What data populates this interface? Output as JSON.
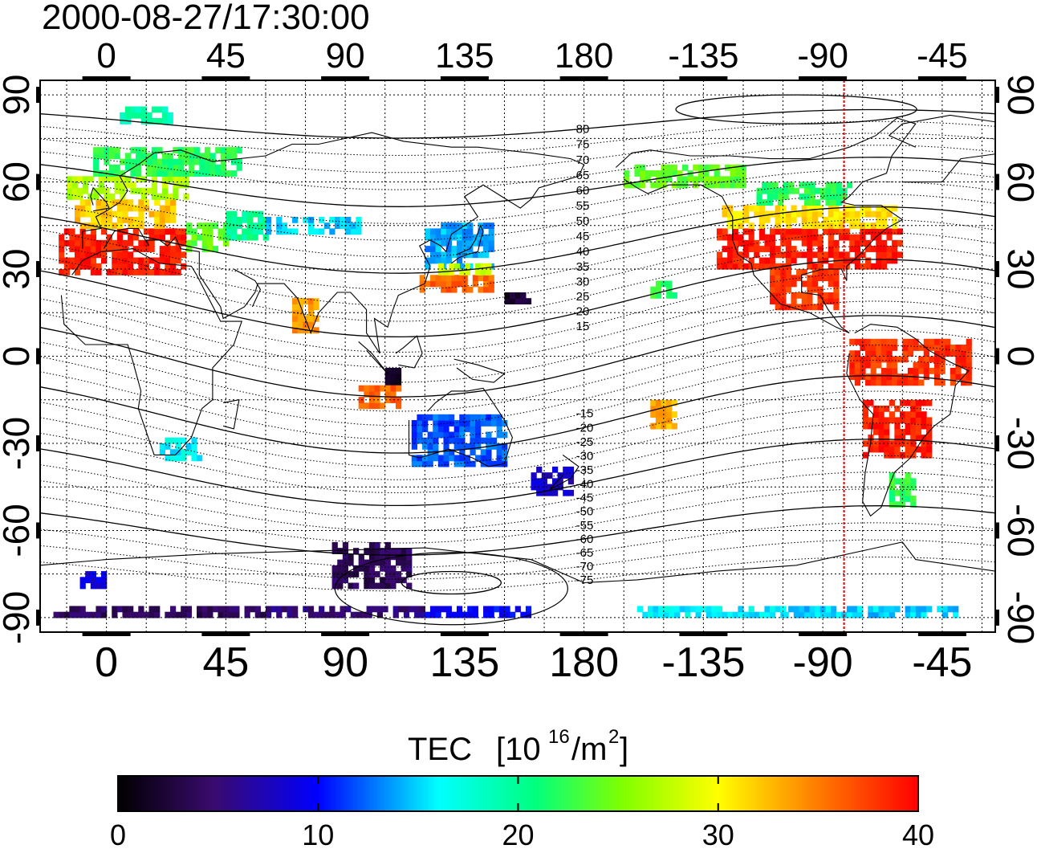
{
  "title": "2000-08-27/17:30:00",
  "map": {
    "lon_range": [
      -25,
      335
    ],
    "lat_range": [
      -95,
      95
    ],
    "lon_ticks": [
      0,
      45,
      90,
      135,
      180,
      225,
      270,
      315
    ],
    "lon_tick_labels": [
      "0",
      "45",
      "90",
      "135",
      "180",
      "-135",
      "-90",
      "-45"
    ],
    "lat_ticks": [
      90,
      60,
      30,
      0,
      -30,
      -60,
      -90
    ],
    "lat_tick_labels": [
      "90",
      "60",
      "30",
      "0",
      "-30",
      "-60",
      "-90"
    ],
    "grid": "dotted, every 15 degrees",
    "meridian_marker": {
      "lon": 278,
      "color": "#e00000"
    },
    "contour_labels": [
      "80",
      "75",
      "70",
      "65",
      "60",
      "55",
      "50",
      "45",
      "40",
      "35",
      "30",
      "25",
      "20",
      "15",
      "-15",
      "-20",
      "-25",
      "-30",
      "-35",
      "-40",
      "-45",
      "-50",
      "-55",
      "-60",
      "-65",
      "-70",
      "-75"
    ],
    "contour_label_lon": 180
  },
  "tec_regions": [
    {
      "lon": [
        -18,
        30
      ],
      "lat": [
        28,
        44
      ],
      "value": 39
    },
    {
      "lon": [
        -12,
        25
      ],
      "lat": [
        44,
        54
      ],
      "value": 32
    },
    {
      "lon": [
        -15,
        30
      ],
      "lat": [
        54,
        62
      ],
      "value": 27
    },
    {
      "lon": [
        -5,
        50
      ],
      "lat": [
        62,
        72
      ],
      "value": 22
    },
    {
      "lon": [
        5,
        25
      ],
      "lat": [
        80,
        86
      ],
      "value": 19
    },
    {
      "lon": [
        30,
        45
      ],
      "lat": [
        36,
        46
      ],
      "value": 24
    },
    {
      "lon": [
        45,
        60
      ],
      "lat": [
        40,
        50
      ],
      "value": 20
    },
    {
      "lon": [
        60,
        95
      ],
      "lat": [
        42,
        48
      ],
      "value": 15
    },
    {
      "lon": [
        120,
        145
      ],
      "lat": [
        30,
        45
      ],
      "value": 14
    },
    {
      "lon": [
        118,
        145
      ],
      "lat": [
        22,
        28
      ],
      "value": 36
    },
    {
      "lon": [
        125,
        145
      ],
      "lat": [
        28,
        32
      ],
      "value": 28
    },
    {
      "lon": [
        230,
        300
      ],
      "lat": [
        30,
        44
      ],
      "value": 39
    },
    {
      "lon": [
        232,
        298
      ],
      "lat": [
        44,
        52
      ],
      "value": 31
    },
    {
      "lon": [
        195,
        240
      ],
      "lat": [
        58,
        65
      ],
      "value": 24
    },
    {
      "lon": [
        245,
        280
      ],
      "lat": [
        52,
        60
      ],
      "value": 22
    },
    {
      "lon": [
        250,
        275
      ],
      "lat": [
        16,
        30
      ],
      "value": 38
    },
    {
      "lon": [
        280,
        325
      ],
      "lat": [
        -10,
        5
      ],
      "value": 38
    },
    {
      "lon": [
        285,
        310
      ],
      "lat": [
        -35,
        -15
      ],
      "value": 39
    },
    {
      "lon": [
        295,
        305
      ],
      "lat": [
        -52,
        -40
      ],
      "value": 22
    },
    {
      "lon": [
        20,
        35
      ],
      "lat": [
        -36,
        -28
      ],
      "value": 16
    },
    {
      "lon": [
        160,
        176
      ],
      "lat": [
        -48,
        -38
      ],
      "value": 8
    },
    {
      "lon": [
        115,
        150
      ],
      "lat": [
        -38,
        -20
      ],
      "value": 12
    },
    {
      "lon": [
        85,
        115
      ],
      "lat": [
        -80,
        -65
      ],
      "value": 4
    },
    {
      "lon": [
        -10,
        0
      ],
      "lat": [
        -80,
        -75
      ],
      "value": 9
    },
    {
      "lon": [
        -20,
        60
      ],
      "lat": [
        -90,
        -87
      ],
      "value": 4
    },
    {
      "lon": [
        60,
        120
      ],
      "lat": [
        -90,
        -87
      ],
      "value": 5
    },
    {
      "lon": [
        120,
        160
      ],
      "lat": [
        -90,
        -87
      ],
      "value": 10
    },
    {
      "lon": [
        200,
        255
      ],
      "lat": [
        -90,
        -87
      ],
      "value": 16
    },
    {
      "lon": [
        255,
        320
      ],
      "lat": [
        -90,
        -87
      ],
      "value": 15
    },
    {
      "lon": [
        205,
        215
      ],
      "lat": [
        20,
        26
      ],
      "value": 22
    },
    {
      "lon": [
        150,
        160
      ],
      "lat": [
        18,
        22
      ],
      "value": 2
    },
    {
      "lon": [
        105,
        110
      ],
      "lat": [
        -12,
        -4
      ],
      "value": 2
    },
    {
      "lon": [
        95,
        110
      ],
      "lat": [
        -18,
        -10
      ],
      "value": 36
    },
    {
      "lon": [
        70,
        80
      ],
      "lat": [
        8,
        20
      ],
      "value": 34
    },
    {
      "lon": [
        205,
        215
      ],
      "lat": [
        -25,
        -15
      ],
      "value": 33
    }
  ],
  "colorbar": {
    "label": "TEC",
    "units_prefix": "[10",
    "units_exp": "16",
    "units_mid": "/m",
    "units_exp2": "2",
    "units_suffix": "]",
    "range": [
      0,
      40
    ],
    "ticks": [
      0,
      10,
      20,
      30,
      40
    ],
    "tick_labels": [
      "0",
      "10",
      "20",
      "30",
      "40"
    ]
  }
}
